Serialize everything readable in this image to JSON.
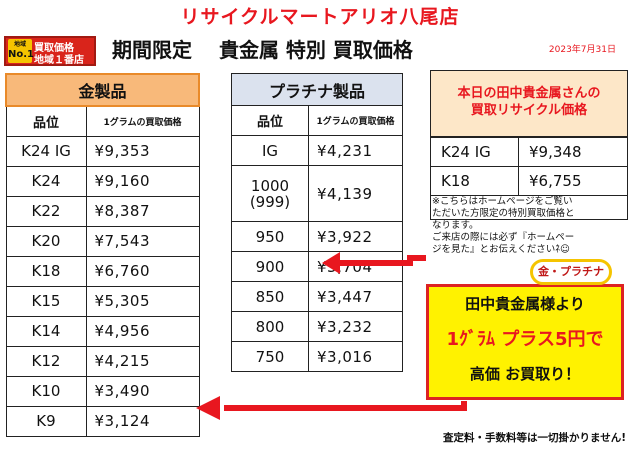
{
  "store_title": "リサイクルマートアリオ八尾店",
  "badge": {
    "no1_top": "地域",
    "no1": "No.1",
    "line1": "買取価格",
    "line2": "地域１番店"
  },
  "headline": "期間限定　 貴金属 特別 買取価格",
  "date": "2023年7月31日",
  "gold": {
    "caption": "金製品",
    "col_grade": "品位",
    "col_price": "1グラムの買取価格",
    "rows": [
      {
        "grade": "K24 IG",
        "price": "¥9,353"
      },
      {
        "grade": "K24",
        "price": "¥9,160"
      },
      {
        "grade": "K22",
        "price": "¥8,387"
      },
      {
        "grade": "K20",
        "price": "¥7,543"
      },
      {
        "grade": "K18",
        "price": "¥6,760"
      },
      {
        "grade": "K15",
        "price": "¥5,305"
      },
      {
        "grade": "K14",
        "price": "¥4,956"
      },
      {
        "grade": "K12",
        "price": "¥4,215"
      },
      {
        "grade": "K10",
        "price": "¥3,490"
      },
      {
        "grade": "K9",
        "price": "¥3,124"
      }
    ]
  },
  "platinum": {
    "caption": "プラチナ製品",
    "col_grade": "品位",
    "col_price": "1グラムの買取価格",
    "rows": [
      {
        "grade": "IG",
        "price": "¥4,231"
      },
      {
        "grade": "1000",
        "grade_sub": "(999)",
        "price": "¥4,139"
      },
      {
        "grade": "950",
        "price": "¥3,922"
      },
      {
        "grade": "900",
        "price": "¥3,704"
      },
      {
        "grade": "850",
        "price": "¥3,447"
      },
      {
        "grade": "800",
        "price": "¥3,232"
      },
      {
        "grade": "750",
        "price": "¥3,016"
      }
    ]
  },
  "today": {
    "head_line1": "本日の田中貴金属さんの",
    "head_line2": "買取リサイクル価格",
    "rows": [
      {
        "grade": "K24 IG",
        "price": "¥9,348"
      },
      {
        "grade": "K18",
        "price": "¥6,755"
      }
    ]
  },
  "note": {
    "lines": [
      "※こちらはホームページをご覧い",
      "ただいた方限定の特別買取価格と",
      "なります。",
      "ご来店の際には必ず『ホームペー",
      "ジを見た』とお伝えくださいﾈ☺"
    ]
  },
  "promo": {
    "tag": "金・プラチナ",
    "line1": "田中貴金属様より",
    "line2": "1ｸﾞﾗﾑ プラス5円で",
    "line3": "高価 お買取り！"
  },
  "footer": "査定料・手数料等は一切掛かりません!",
  "colors": {
    "accent_red": "#e8171f",
    "gold_header": "#f8b97a",
    "platinum_header": "#dbe2ee",
    "promo_yellow": "#fff200"
  }
}
